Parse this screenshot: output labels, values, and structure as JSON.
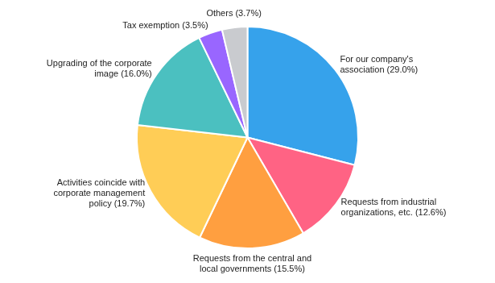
{
  "chart_data": {
    "type": "pie",
    "categories": [
      "For our company's\nassociation (29.0%)",
      "Requests from industrial\norganizations, etc. (12.6%)",
      "Requests from the central and\nlocal governments (15.5%)",
      "Activities coincide with\ncorporate management\npolicy (19.7%)",
      "Upgrading of the corporate\nimage (16.0%)",
      "Tax exemption (3.5%)",
      "Others (3.7%)"
    ],
    "values": [
      29.0,
      12.6,
      15.5,
      19.7,
      16.0,
      3.5,
      3.7
    ]
  }
}
